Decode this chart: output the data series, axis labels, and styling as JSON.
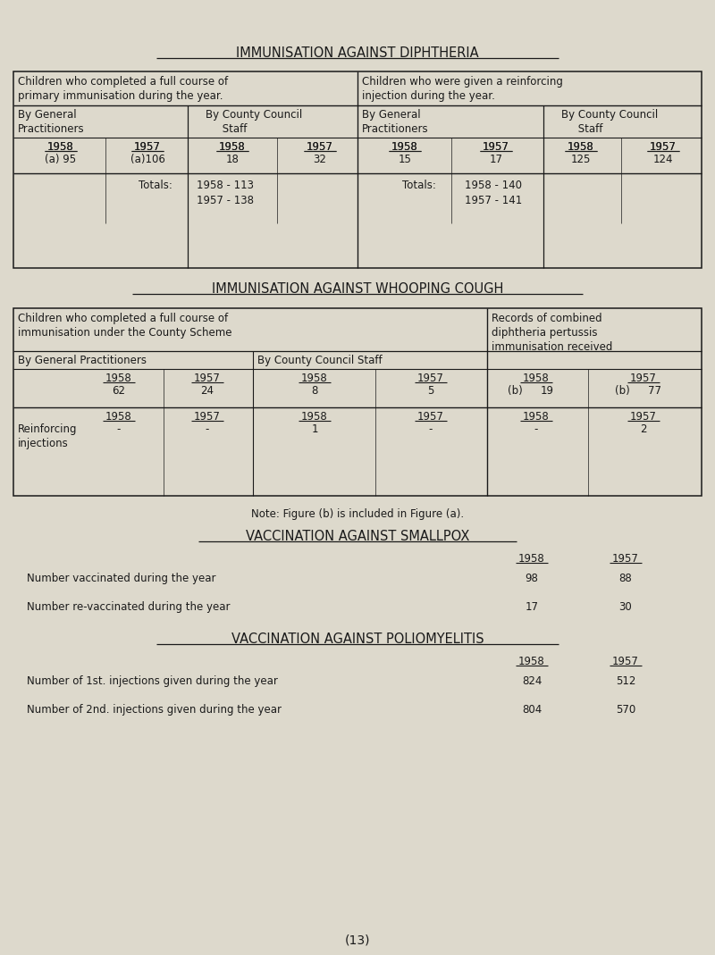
{
  "bg_color": "#ddd9cc",
  "text_color": "#1a1a1a",
  "page_number": "(13)",
  "section1_title": "IMMUNISATION AGAINST DIPHTHERIA",
  "section2_title": "IMMUNISATION AGAINST WHOOPING COUGH",
  "section3_title": "VACCINATION AGAINST SMALLPOX",
  "section4_title": "VACCINATION AGAINST POLIOMYELITIS",
  "diph_col1_header": "Children who completed a full course of\nprimary immunisation during the year.",
  "diph_col2_header": "Children who were given a reinforcing\ninjection during the year.",
  "diph_sub1_header": "By General\nPractitioners",
  "diph_sub2_header": "By County Council\n     Staff",
  "diph_sub3_header": "By General\nPractitioners",
  "diph_sub4_header": "By County Council\n     Staff",
  "diph_gp_1958": "(a) 95",
  "diph_gp_1957": "(a)106",
  "diph_cc_1958": "18",
  "diph_cc_1957": "32",
  "diph_gp2_1958": "15",
  "diph_gp2_1957": "17",
  "diph_cc2_1958": "125",
  "diph_cc2_1957": "124",
  "diph_total1_label": "Totals:",
  "diph_total1_1958": "1958 - 113",
  "diph_total1_1957": "1957 - 138",
  "diph_total2_label": "Totals:",
  "diph_total2_1958": "1958 - 140",
  "diph_total2_1957": "1957 - 141",
  "wc_col1_header": "Children who completed a full course of\nimmunisation under the County Scheme",
  "wc_col2_header": "Records of combined\ndiphtheria pertussis\nimmunisation received",
  "wc_sub1_header": "By General Practitioners",
  "wc_sub2_header": "By County Council Staff",
  "wc_gp_1958": "62",
  "wc_gp_1957": "24",
  "wc_cc_1958": "8",
  "wc_cc_1957": "5",
  "wc_rec_1958": "19",
  "wc_rec_b_1958": "(b)",
  "wc_rec_1957": "77",
  "wc_rec_b_1957": "(b)",
  "wc_reinf_label": "Reinforcing\ninjections",
  "wc_reinf_gp_1958": "-",
  "wc_reinf_gp_1957": "-",
  "wc_reinf_cc_1958": "1",
  "wc_reinf_cc_1957": "-",
  "wc_reinf_rec_1958": "-",
  "wc_reinf_rec_1957": "2",
  "wc_note": "Note: Figure (b) is included in Figure (a).",
  "smallpox_col1958": "1958",
  "smallpox_col1957": "1957",
  "smallpox_row1_label": "Number vaccinated during the year",
  "smallpox_row1_1958": "98",
  "smallpox_row1_1957": "88",
  "smallpox_row2_label": "Number re-vaccinated during the year",
  "smallpox_row2_1958": "17",
  "smallpox_row2_1957": "30",
  "polio_col1958": "1958",
  "polio_col1957": "1957",
  "polio_row1_label": "Number of 1st. injections given during the year",
  "polio_row1_1958": "824",
  "polio_row1_1957": "512",
  "polio_row2_label": "Number of 2nd. injections given during the year",
  "polio_row2_1958": "804",
  "polio_row2_1957": "570"
}
